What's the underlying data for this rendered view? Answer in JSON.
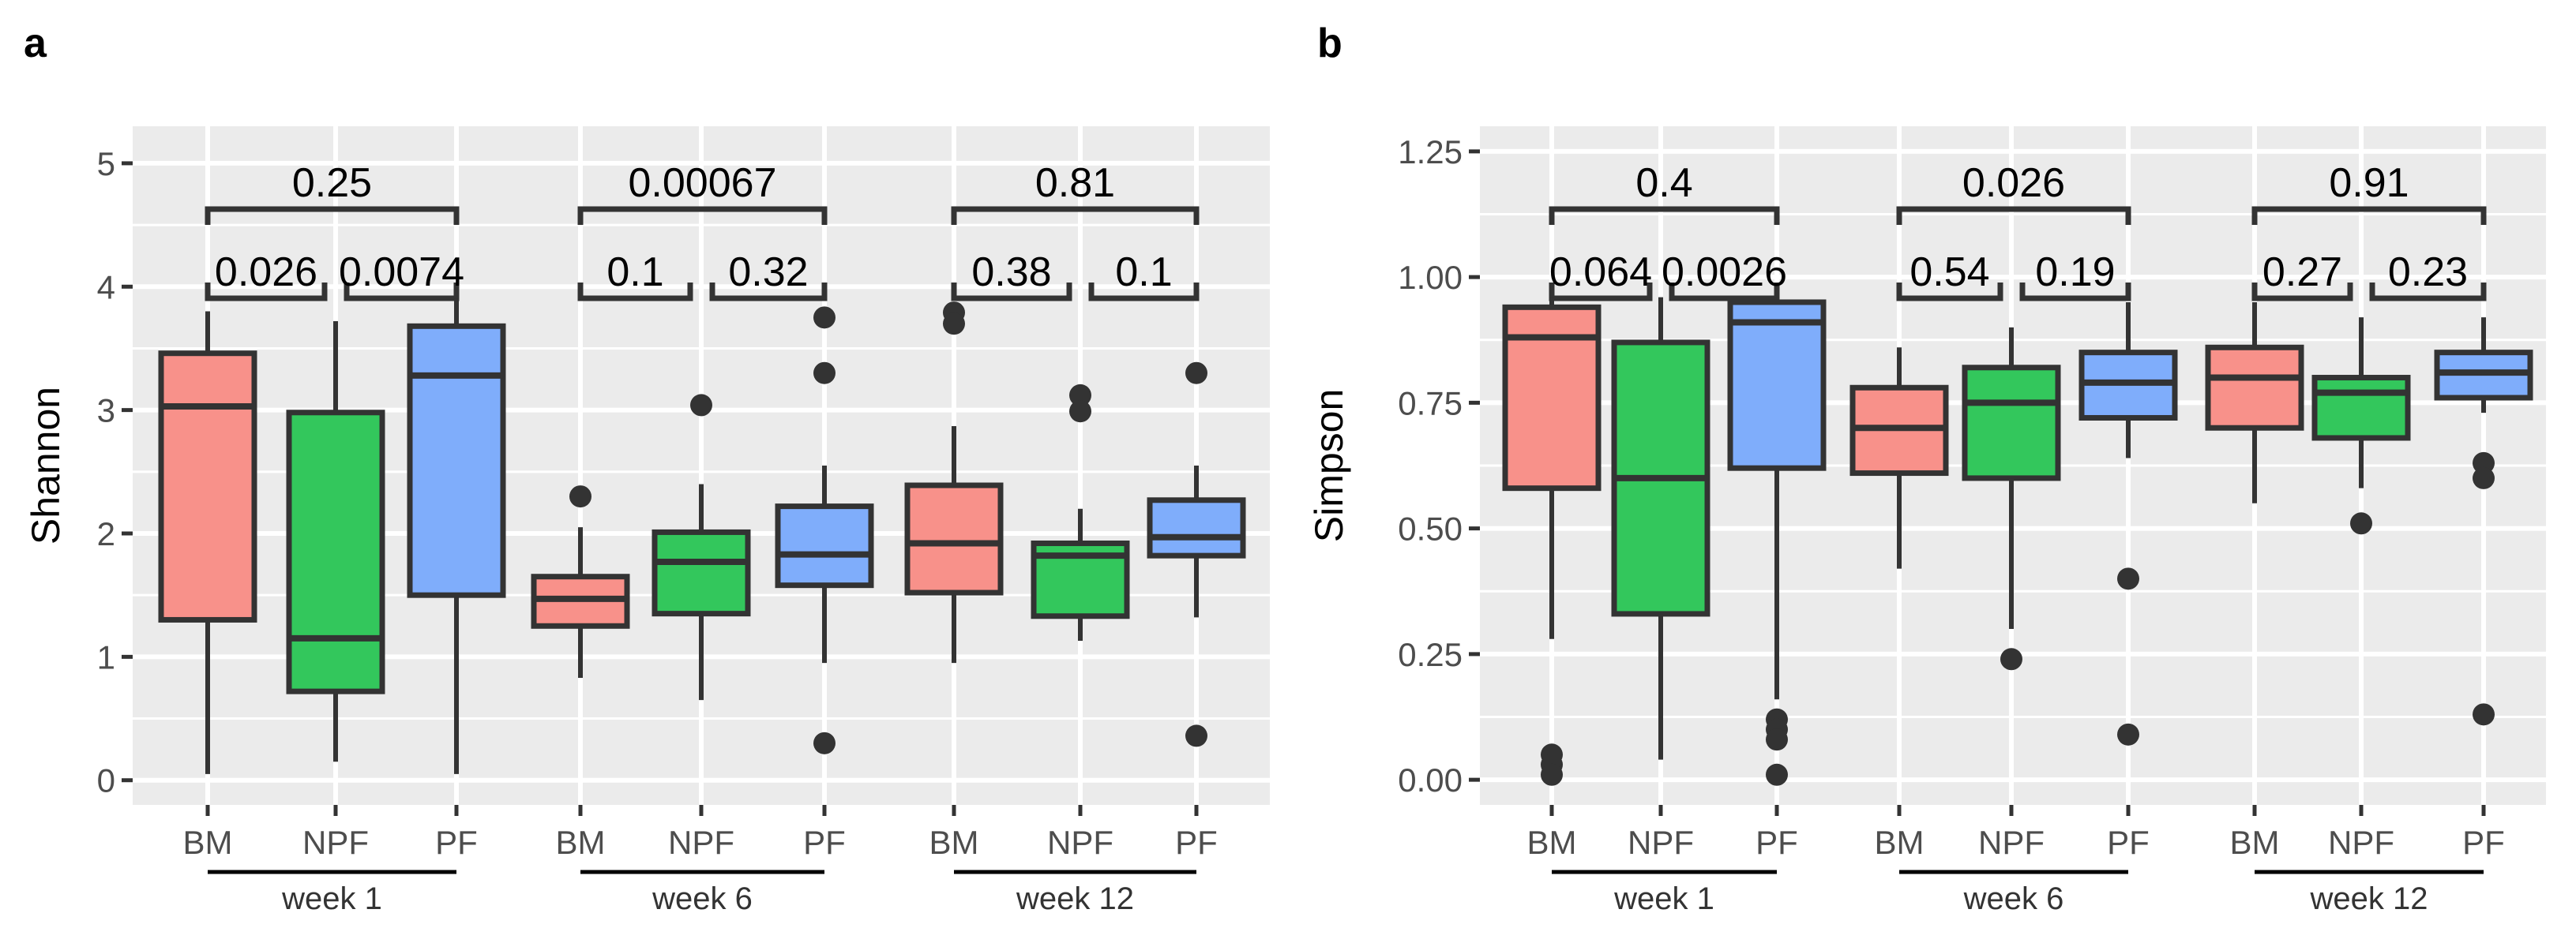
{
  "colors": {
    "BM": "#F8918A",
    "NPF": "#33C75C",
    "PF": "#7FADFB",
    "outline": "#333333",
    "panel_bg": "#EBEBEB",
    "grid": "#FFFFFF"
  },
  "chart_data": [
    {
      "panel_label": "a",
      "type": "boxplot",
      "ylabel": "Shannon",
      "ylim": [
        -0.2,
        5.3
      ],
      "y_ticks": [
        "0",
        "1",
        "2",
        "3",
        "4",
        "5"
      ],
      "groups": [
        "BM",
        "NPF",
        "PF"
      ],
      "weeks": [
        "week 1",
        "week 6",
        "week 12"
      ],
      "boxes": [
        {
          "week": "week 1",
          "group": "BM",
          "whisker_low": 0.05,
          "q1": 1.3,
          "median": 3.03,
          "q3": 3.46,
          "whisker_high": 3.8,
          "outliers": []
        },
        {
          "week": "week 1",
          "group": "NPF",
          "whisker_low": 0.15,
          "q1": 0.72,
          "median": 1.15,
          "q3": 2.98,
          "whisker_high": 3.72,
          "outliers": []
        },
        {
          "week": "week 1",
          "group": "PF",
          "whisker_low": 0.05,
          "q1": 1.5,
          "median": 3.28,
          "q3": 3.68,
          "whisker_high": 3.9,
          "outliers": []
        },
        {
          "week": "week 6",
          "group": "BM",
          "whisker_low": 0.83,
          "q1": 1.25,
          "median": 1.47,
          "q3": 1.65,
          "whisker_high": 2.05,
          "outliers": [
            2.3
          ]
        },
        {
          "week": "week 6",
          "group": "NPF",
          "whisker_low": 0.65,
          "q1": 1.35,
          "median": 1.77,
          "q3": 2.01,
          "whisker_high": 2.4,
          "outliers": [
            3.04
          ]
        },
        {
          "week": "week 6",
          "group": "PF",
          "whisker_low": 0.95,
          "q1": 1.58,
          "median": 1.83,
          "q3": 2.22,
          "whisker_high": 2.55,
          "outliers": [
            3.75,
            3.3,
            0.3
          ]
        },
        {
          "week": "week 12",
          "group": "BM",
          "whisker_low": 0.95,
          "q1": 1.52,
          "median": 1.92,
          "q3": 2.39,
          "whisker_high": 2.87,
          "outliers": [
            3.79,
            3.7
          ]
        },
        {
          "week": "week 12",
          "group": "NPF",
          "whisker_low": 1.13,
          "q1": 1.33,
          "median": 1.82,
          "q3": 1.92,
          "whisker_high": 2.2,
          "outliers": [
            3.12,
            2.99
          ]
        },
        {
          "week": "week 12",
          "group": "PF",
          "whisker_low": 1.32,
          "q1": 1.82,
          "median": 1.97,
          "q3": 2.27,
          "whisker_high": 2.55,
          "outliers": [
            3.3,
            0.36
          ]
        }
      ],
      "comparisons": [
        {
          "week": "week 1",
          "pair": "BM-PF",
          "p": "0.25",
          "level": 2
        },
        {
          "week": "week 1",
          "pair": "BM-NPF",
          "p": "0.026",
          "level": 1
        },
        {
          "week": "week 1",
          "pair": "NPF-PF",
          "p": "0.0074",
          "level": 1
        },
        {
          "week": "week 6",
          "pair": "BM-PF",
          "p": "0.00067",
          "level": 2
        },
        {
          "week": "week 6",
          "pair": "BM-NPF",
          "p": "0.1",
          "level": 1
        },
        {
          "week": "week 6",
          "pair": "NPF-PF",
          "p": "0.32",
          "level": 1
        },
        {
          "week": "week 12",
          "pair": "BM-PF",
          "p": "0.81",
          "level": 2
        },
        {
          "week": "week 12",
          "pair": "BM-NPF",
          "p": "0.38",
          "level": 1
        },
        {
          "week": "week 12",
          "pair": "NPF-PF",
          "p": "0.1",
          "level": 1
        }
      ]
    },
    {
      "panel_label": "b",
      "type": "boxplot",
      "ylabel": "Simpson",
      "ylim": [
        -0.05,
        1.3
      ],
      "y_ticks": [
        "0.00",
        "0.25",
        "0.50",
        "0.75",
        "1.00",
        "1.25"
      ],
      "groups": [
        "BM",
        "NPF",
        "PF"
      ],
      "weeks": [
        "week 1",
        "week 6",
        "week 12"
      ],
      "boxes": [
        {
          "week": "week 1",
          "group": "BM",
          "whisker_low": 0.28,
          "q1": 0.58,
          "median": 0.88,
          "q3": 0.94,
          "whisker_high": 0.96,
          "outliers": [
            0.05,
            0.03,
            0.01
          ]
        },
        {
          "week": "week 1",
          "group": "NPF",
          "whisker_low": 0.04,
          "q1": 0.33,
          "median": 0.6,
          "q3": 0.87,
          "whisker_high": 0.96,
          "outliers": []
        },
        {
          "week": "week 1",
          "group": "PF",
          "whisker_low": 0.16,
          "q1": 0.62,
          "median": 0.91,
          "q3": 0.95,
          "whisker_high": 0.96,
          "outliers": [
            0.12,
            0.1,
            0.08,
            0.01
          ]
        },
        {
          "week": "week 6",
          "group": "BM",
          "whisker_low": 0.42,
          "q1": 0.61,
          "median": 0.7,
          "q3": 0.78,
          "whisker_high": 0.86,
          "outliers": []
        },
        {
          "week": "week 6",
          "group": "NPF",
          "whisker_low": 0.3,
          "q1": 0.6,
          "median": 0.75,
          "q3": 0.82,
          "whisker_high": 0.9,
          "outliers": [
            0.24
          ]
        },
        {
          "week": "week 6",
          "group": "PF",
          "whisker_low": 0.64,
          "q1": 0.72,
          "median": 0.79,
          "q3": 0.85,
          "whisker_high": 0.95,
          "outliers": [
            0.4,
            0.09
          ]
        },
        {
          "week": "week 12",
          "group": "BM",
          "whisker_low": 0.55,
          "q1": 0.7,
          "median": 0.8,
          "q3": 0.86,
          "whisker_high": 0.95,
          "outliers": []
        },
        {
          "week": "week 12",
          "group": "NPF",
          "whisker_low": 0.58,
          "q1": 0.68,
          "median": 0.77,
          "q3": 0.8,
          "whisker_high": 0.92,
          "outliers": [
            0.51
          ]
        },
        {
          "week": "week 12",
          "group": "PF",
          "whisker_low": 0.73,
          "q1": 0.76,
          "median": 0.81,
          "q3": 0.85,
          "whisker_high": 0.92,
          "outliers": [
            0.63,
            0.6,
            0.13
          ]
        }
      ],
      "comparisons": [
        {
          "week": "week 1",
          "pair": "BM-PF",
          "p": "0.4",
          "level": 2
        },
        {
          "week": "week 1",
          "pair": "BM-NPF",
          "p": "0.064",
          "level": 1
        },
        {
          "week": "week 1",
          "pair": "NPF-PF",
          "p": "0.0026",
          "level": 1
        },
        {
          "week": "week 6",
          "pair": "BM-PF",
          "p": "0.026",
          "level": 2
        },
        {
          "week": "week 6",
          "pair": "BM-NPF",
          "p": "0.54",
          "level": 1
        },
        {
          "week": "week 6",
          "pair": "NPF-PF",
          "p": "0.19",
          "level": 1
        },
        {
          "week": "week 12",
          "pair": "BM-PF",
          "p": "0.91",
          "level": 2
        },
        {
          "week": "week 12",
          "pair": "BM-NPF",
          "p": "0.27",
          "level": 1
        },
        {
          "week": "week 12",
          "pair": "NPF-PF",
          "p": "0.23",
          "level": 1
        }
      ]
    }
  ]
}
